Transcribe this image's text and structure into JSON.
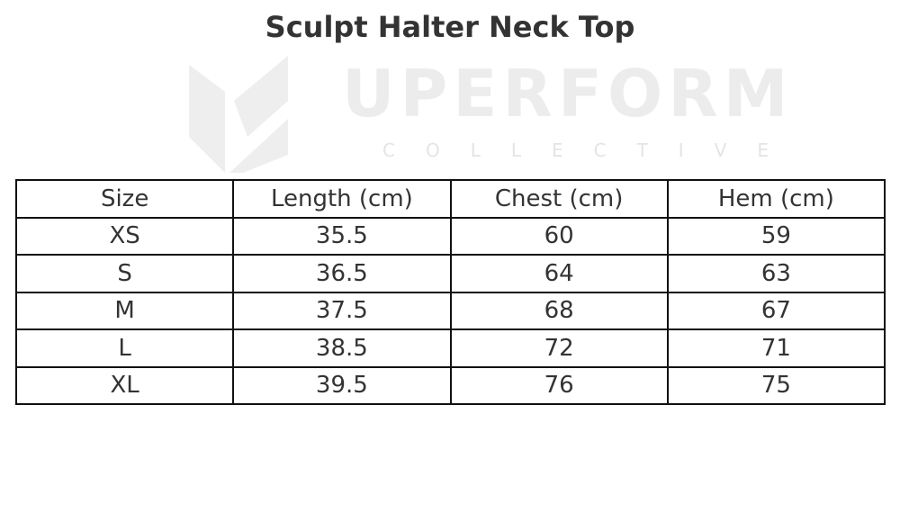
{
  "title": "Sculpt Halter Neck Top",
  "watermark": {
    "brand": "UPERFORM",
    "subtitle": "COLLECTIVE"
  },
  "table": {
    "headers": [
      "Size",
      "Length (cm)",
      "Chest (cm)",
      "Hem (cm)"
    ],
    "rows": [
      [
        "XS",
        "35.5",
        "60",
        "59"
      ],
      [
        "S",
        "36.5",
        "64",
        "63"
      ],
      [
        "M",
        "37.5",
        "68",
        "67"
      ],
      [
        "L",
        "38.5",
        "72",
        "71"
      ],
      [
        "XL",
        "39.5",
        "76",
        "75"
      ]
    ]
  }
}
